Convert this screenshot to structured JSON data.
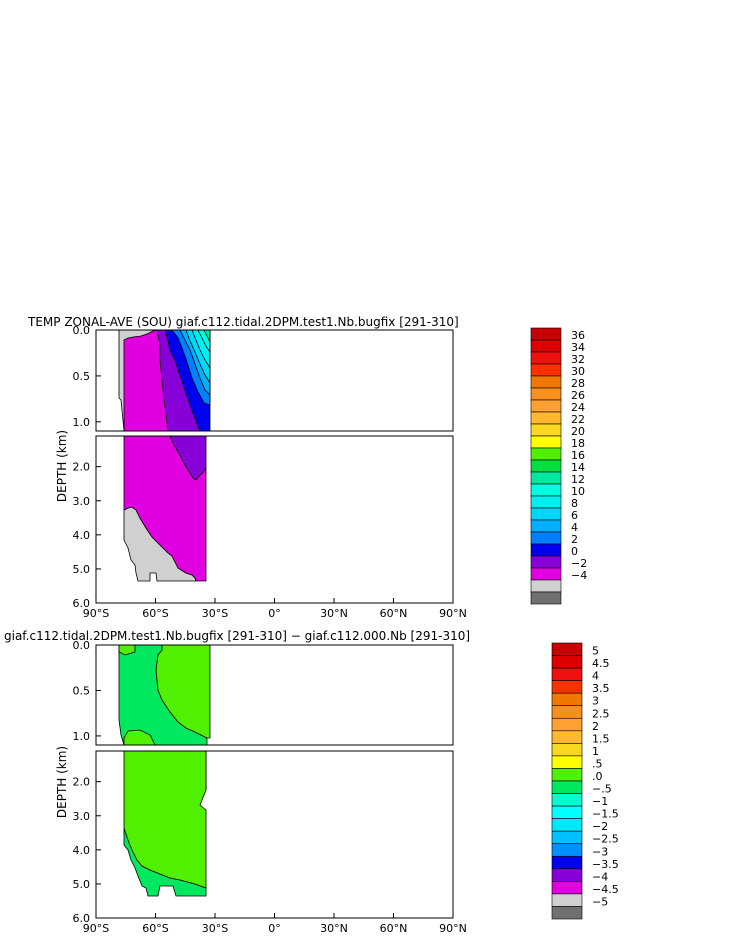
{
  "chart_data": [
    {
      "type": "heatmap",
      "title": "TEMP ZONAL-AVE (SOU) giaf.c112.tidal.2DPM.test1.Nb.bugfix [291-310]",
      "ylabel": "DEPTH (km)",
      "xlim": [
        -90,
        90
      ],
      "ylim": [
        6.0,
        0.0
      ],
      "x_tick_labels": [
        "90°S",
        "60°S",
        "30°S",
        "0°",
        "30°N",
        "60°N",
        "90°N"
      ],
      "y_tick_labels_upper": [
        "0.0",
        "0.5",
        "1.0"
      ],
      "y_tick_labels_lower": [
        "2.0",
        "3.0",
        "4.0",
        "5.0",
        "6.0"
      ],
      "colorbar": {
        "labels": [
          "36",
          "34",
          "32",
          "30",
          "28",
          "26",
          "24",
          "22",
          "20",
          "18",
          "16",
          "14",
          "12",
          "10",
          "8",
          "6",
          "4",
          "2",
          "0",
          "−2",
          "−4"
        ],
        "colors": [
          "#c80000",
          "#dc0000",
          "#f01010",
          "#ff3000",
          "#f07800",
          "#f89020",
          "#ffa030",
          "#ffb830",
          "#f8d820",
          "#ffff00",
          "#50f000",
          "#00e040",
          "#00e8a0",
          "#00ffe0",
          "#00f0f0",
          "#00d8f8",
          "#00b0ff",
          "#0080ff",
          "#0000f0",
          "#8800d8",
          "#e000e0",
          "#d0d0d0",
          "#707070"
        ]
      },
      "filled_regions": [
        {
          "value_range": [
            -2,
            0
          ],
          "color": "#d0d0d0",
          "area": "top surface near 75°S and deep water poleward of 65°S below ~3.3 km"
        },
        {
          "value_range": [
            0,
            2
          ],
          "color": "#e000e0",
          "area": "bulk of water column 73°S-35°S"
        },
        {
          "value_range": [
            2,
            4
          ],
          "color": "#8800d8",
          "area": "band 55°S-35°S, surface to ~2.4 km"
        },
        {
          "value_range": [
            4,
            20
          ],
          "color": "#0000f0",
          "area": "upper 1 km north of 50°S, warming toward 34°S"
        }
      ]
    },
    {
      "type": "heatmap",
      "title": "giaf.c112.tidal.2DPM.test1.Nb.bugfix [291-310] − giaf.c112.000.Nb [291-310]",
      "ylabel": "DEPTH (km)",
      "xlim": [
        -90,
        90
      ],
      "ylim": [
        6.0,
        0.0
      ],
      "x_tick_labels": [
        "90°S",
        "60°S",
        "30°S",
        "0°",
        "30°N",
        "60°N",
        "90°N"
      ],
      "y_tick_labels_upper": [
        "0.0",
        "0.5",
        "1.0"
      ],
      "y_tick_labels_lower": [
        "2.0",
        "3.0",
        "4.0",
        "5.0",
        "6.0"
      ],
      "colorbar": {
        "labels": [
          "5",
          "4.5",
          "4",
          "3.5",
          "3",
          "2.5",
          "2",
          "1.5",
          "1",
          ".5",
          ".0",
          "−.5",
          "−1",
          "−1.5",
          "−2",
          "−2.5",
          "−3",
          "−3.5",
          "−4",
          "−4.5",
          "−5"
        ],
        "colors": [
          "#c80000",
          "#dc0000",
          "#f01010",
          "#ff3000",
          "#f07800",
          "#f89020",
          "#ffa030",
          "#ffb830",
          "#f8d820",
          "#ffff00",
          "#50f000",
          "#00e860",
          "#00ffd0",
          "#00ffff",
          "#00e8f8",
          "#00c0ff",
          "#0090ff",
          "#0000f0",
          "#8800d8",
          "#e000e0",
          "#d0d0d0",
          "#707070"
        ]
      },
      "filled_regions": [
        {
          "value_range": [
            -0.5,
            0
          ],
          "color": "#00ffd0",
          "area": "upper ocean 75°S-50°S and deep water poleward of 65°S below ~4.3 km"
        },
        {
          "value_range": [
            0,
            0.5
          ],
          "color": "#00e860",
          "area": "upper 1 km north of 50°S and deep water 73°S-35°S"
        }
      ]
    }
  ]
}
